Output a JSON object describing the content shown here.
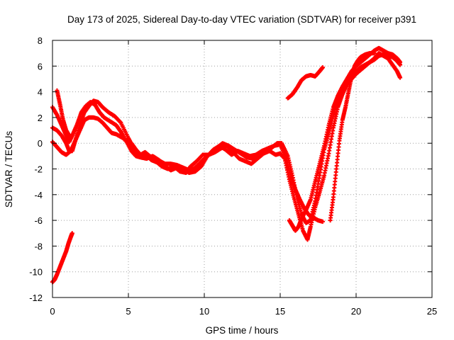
{
  "chart_data": {
    "type": "scatter",
    "title": "Day 173 of 2025, Sidereal Day-to-day VTEC variation (SDTVAR) for receiver p391",
    "xlabel": "GPS time / hours",
    "ylabel": "SDTVAR / TECUs",
    "xlim": [
      0,
      25
    ],
    "ylim": [
      -12,
      8
    ],
    "xticks": [
      0,
      5,
      10,
      15,
      20,
      25
    ],
    "yticks": [
      -12,
      -10,
      -8,
      -6,
      -4,
      -2,
      0,
      2,
      4,
      6,
      8
    ],
    "xtick_labels": [
      "0",
      "5",
      "10",
      "15",
      "20",
      "25"
    ],
    "ytick_labels": [
      "-12",
      "-10",
      "-8",
      "-6",
      "-4",
      "-2",
      "0",
      "2",
      "4",
      "6",
      "8"
    ],
    "grid": true,
    "marker": "plus",
    "colors": {
      "series": "#ff0000",
      "grid": "#a0a0a0",
      "axes": "#000000"
    },
    "series": [
      {
        "values": [
          [
            0.0,
            2.8
          ],
          [
            0.3,
            2.2
          ],
          [
            0.6,
            1.4
          ],
          [
            0.9,
            0.6
          ],
          [
            1.1,
            0.1
          ],
          [
            1.3,
            0.6
          ],
          [
            1.6,
            1.4
          ],
          [
            1.9,
            2.4
          ],
          [
            2.2,
            2.9
          ],
          [
            2.5,
            3.2
          ],
          [
            2.8,
            3.0
          ],
          [
            3.1,
            2.4
          ],
          [
            3.4,
            2.0
          ],
          [
            3.8,
            1.7
          ],
          [
            4.2,
            1.4
          ],
          [
            4.5,
            0.9
          ],
          [
            4.8,
            0.2
          ],
          [
            5.2,
            0.0
          ],
          [
            5.5,
            -0.5
          ],
          [
            5.8,
            -0.9
          ],
          [
            6.1,
            -0.7
          ],
          [
            6.4,
            -1.0
          ],
          [
            6.8,
            -1.2
          ],
          [
            7.1,
            -1.4
          ],
          [
            7.4,
            -1.6
          ],
          [
            7.8,
            -1.6
          ],
          [
            8.2,
            -1.7
          ],
          [
            8.6,
            -1.9
          ],
          [
            9.0,
            -2.1
          ],
          [
            9.3,
            -2.0
          ],
          [
            9.6,
            -1.7
          ],
          [
            10.0,
            -1.2
          ],
          [
            10.4,
            -0.8
          ],
          [
            10.8,
            -0.4
          ],
          [
            11.2,
            0.0
          ],
          [
            11.6,
            -0.2
          ],
          [
            12.0,
            -0.5
          ],
          [
            12.4,
            -0.8
          ],
          [
            12.8,
            -1.1
          ],
          [
            13.2,
            -1.2
          ],
          [
            13.6,
            -1.0
          ],
          [
            14.0,
            -0.7
          ],
          [
            14.4,
            -0.4
          ],
          [
            14.8,
            0.0
          ],
          [
            15.1,
            0.0
          ],
          [
            15.5,
            -1.0
          ],
          [
            15.8,
            -2.5
          ],
          [
            16.1,
            -4.2
          ],
          [
            16.4,
            -5.5
          ],
          [
            16.7,
            -6.2
          ],
          [
            17.0,
            -6.0
          ],
          [
            17.3,
            -4.5
          ],
          [
            17.6,
            -2.5
          ],
          [
            17.9,
            -0.5
          ],
          [
            18.2,
            0.8
          ],
          [
            18.5,
            2.2
          ],
          [
            18.8,
            3.3
          ],
          [
            19.1,
            4.1
          ],
          [
            19.4,
            4.6
          ],
          [
            19.7,
            5.0
          ],
          [
            20.0,
            5.4
          ],
          [
            20.3,
            5.7
          ],
          [
            20.6,
            6.0
          ],
          [
            20.9,
            6.3
          ],
          [
            21.2,
            6.6
          ],
          [
            21.5,
            7.0
          ],
          [
            21.8,
            6.8
          ],
          [
            22.1,
            6.6
          ],
          [
            22.4,
            6.1
          ],
          [
            22.7,
            5.6
          ],
          [
            22.9,
            5.1
          ]
        ]
      },
      {
        "values": [
          [
            0.0,
            1.2
          ],
          [
            0.3,
            1.0
          ],
          [
            0.6,
            0.6
          ],
          [
            0.9,
            0.0
          ],
          [
            1.1,
            -0.6
          ],
          [
            1.3,
            -0.6
          ],
          [
            1.5,
            0.2
          ],
          [
            1.8,
            1.4
          ],
          [
            2.1,
            2.4
          ],
          [
            2.4,
            2.9
          ],
          [
            2.7,
            3.3
          ],
          [
            3.0,
            3.2
          ],
          [
            3.3,
            2.8
          ],
          [
            3.7,
            2.4
          ],
          [
            4.1,
            2.1
          ],
          [
            4.5,
            1.6
          ],
          [
            5.0,
            0.4
          ],
          [
            5.3,
            -0.3
          ],
          [
            5.6,
            -0.8
          ],
          [
            5.9,
            -1.1
          ],
          [
            6.2,
            -0.9
          ],
          [
            6.5,
            -1.3
          ],
          [
            6.9,
            -1.5
          ],
          [
            7.2,
            -1.8
          ],
          [
            7.6,
            -2.0
          ],
          [
            8.0,
            -1.8
          ],
          [
            8.4,
            -2.2
          ],
          [
            8.8,
            -2.3
          ],
          [
            9.1,
            -1.8
          ],
          [
            9.5,
            -1.4
          ],
          [
            9.9,
            -0.9
          ],
          [
            10.3,
            -0.9
          ],
          [
            10.7,
            -0.7
          ],
          [
            11.1,
            -0.4
          ],
          [
            11.5,
            -0.2
          ],
          [
            11.9,
            -0.7
          ],
          [
            12.3,
            -1.2
          ],
          [
            12.7,
            -1.4
          ],
          [
            13.1,
            -1.6
          ],
          [
            13.5,
            -1.2
          ],
          [
            13.9,
            -0.8
          ],
          [
            14.3,
            -0.6
          ],
          [
            14.7,
            -0.9
          ],
          [
            15.0,
            -0.8
          ],
          [
            15.3,
            -1.2
          ],
          [
            15.6,
            -2.8
          ],
          [
            15.9,
            -4.2
          ],
          [
            16.2,
            -5.5
          ],
          [
            16.5,
            -6.8
          ],
          [
            16.8,
            -7.5
          ],
          [
            17.0,
            -6.5
          ],
          [
            17.3,
            -5.0
          ],
          [
            17.6,
            -3.8
          ],
          [
            17.9,
            -2.5
          ],
          [
            18.2,
            -0.8
          ],
          [
            18.5,
            1.2
          ],
          [
            18.8,
            2.8
          ],
          [
            19.1,
            3.8
          ],
          [
            19.4,
            4.6
          ],
          [
            19.7,
            5.2
          ],
          [
            20.0,
            5.6
          ],
          [
            20.3,
            5.9
          ],
          [
            20.6,
            6.1
          ],
          [
            20.9,
            6.3
          ],
          [
            21.2,
            6.5
          ],
          [
            21.5,
            6.8
          ],
          [
            21.8,
            6.9
          ],
          [
            22.1,
            6.8
          ],
          [
            22.4,
            6.7
          ],
          [
            22.7,
            6.4
          ],
          [
            22.9,
            6.1
          ]
        ]
      },
      {
        "values": [
          [
            0.0,
            0.1
          ],
          [
            0.3,
            -0.3
          ],
          [
            0.6,
            -0.7
          ],
          [
            0.9,
            -0.9
          ],
          [
            1.2,
            -0.6
          ],
          [
            1.5,
            0.2
          ],
          [
            1.8,
            1.0
          ],
          [
            2.1,
            1.8
          ],
          [
            2.4,
            2.0
          ],
          [
            2.7,
            2.0
          ],
          [
            3.0,
            1.9
          ],
          [
            3.3,
            1.6
          ],
          [
            3.6,
            1.2
          ],
          [
            3.9,
            0.8
          ],
          [
            4.2,
            0.7
          ],
          [
            4.5,
            0.5
          ],
          [
            4.8,
            0.3
          ],
          [
            5.2,
            -0.6
          ],
          [
            5.5,
            -1.0
          ],
          [
            5.8,
            -1.1
          ],
          [
            6.2,
            -1.2
          ],
          [
            6.6,
            -1.0
          ],
          [
            7.0,
            -1.3
          ],
          [
            7.4,
            -1.8
          ],
          [
            7.8,
            -2.1
          ],
          [
            8.2,
            -1.9
          ],
          [
            8.6,
            -2.0
          ],
          [
            9.0,
            -2.3
          ],
          [
            9.4,
            -2.2
          ],
          [
            9.8,
            -1.8
          ],
          [
            10.2,
            -1.0
          ],
          [
            10.6,
            -0.5
          ],
          [
            11.0,
            -0.2
          ],
          [
            11.4,
            -0.5
          ],
          [
            11.8,
            -0.9
          ],
          [
            12.2,
            -0.6
          ],
          [
            12.6,
            -0.8
          ],
          [
            13.0,
            -1.0
          ],
          [
            13.4,
            -0.9
          ],
          [
            13.8,
            -0.6
          ],
          [
            14.2,
            -0.4
          ],
          [
            14.6,
            -0.2
          ],
          [
            15.0,
            -0.1
          ],
          [
            15.4,
            -1.2
          ],
          [
            15.7,
            -2.6
          ],
          [
            16.0,
            -3.6
          ],
          [
            16.3,
            -4.4
          ],
          [
            16.6,
            -5.1
          ],
          [
            16.9,
            -5.6
          ],
          [
            17.2,
            -5.8
          ],
          [
            17.5,
            -6.0
          ],
          [
            17.8,
            -6.1
          ]
        ]
      },
      {
        "values": [
          [
            15.6,
            -6.0
          ],
          [
            15.8,
            -6.4
          ],
          [
            16.0,
            -6.8
          ],
          [
            16.2,
            -6.5
          ],
          [
            16.4,
            -5.9
          ],
          [
            16.7,
            -5.2
          ],
          [
            17.0,
            -4.4
          ],
          [
            17.3,
            -3.0
          ],
          [
            17.6,
            -1.6
          ],
          [
            17.9,
            -0.2
          ],
          [
            18.2,
            1.4
          ],
          [
            18.5,
            2.8
          ],
          [
            18.8,
            3.7
          ],
          [
            19.1,
            4.4
          ],
          [
            19.4,
            5.0
          ],
          [
            19.7,
            5.6
          ],
          [
            20.0,
            6.0
          ],
          [
            20.3,
            6.3
          ],
          [
            20.6,
            6.6
          ],
          [
            20.9,
            6.9
          ],
          [
            21.2,
            7.2
          ],
          [
            21.5,
            7.4
          ],
          [
            21.8,
            7.2
          ],
          [
            22.1,
            7.0
          ],
          [
            22.4,
            6.9
          ],
          [
            22.7,
            6.6
          ],
          [
            22.9,
            6.3
          ]
        ]
      },
      {
        "values": [
          [
            0.3,
            4.1
          ],
          [
            0.5,
            3.0
          ],
          [
            0.7,
            1.8
          ],
          [
            0.9,
            1.0
          ],
          [
            1.1,
            0.6
          ]
        ]
      },
      {
        "values": [
          [
            15.5,
            3.5
          ],
          [
            15.8,
            3.8
          ],
          [
            16.1,
            4.3
          ],
          [
            16.4,
            4.9
          ],
          [
            16.7,
            5.2
          ],
          [
            17.0,
            5.3
          ],
          [
            17.3,
            5.2
          ],
          [
            17.6,
            5.6
          ],
          [
            17.8,
            5.9
          ]
        ]
      },
      {
        "values": [
          [
            18.3,
            -6.0
          ],
          [
            18.5,
            -4.2
          ],
          [
            18.7,
            -2.0
          ],
          [
            18.9,
            0.2
          ],
          [
            19.1,
            1.8
          ],
          [
            19.3,
            2.8
          ],
          [
            19.5,
            4.0
          ],
          [
            19.7,
            5.2
          ],
          [
            19.9,
            6.0
          ],
          [
            20.1,
            6.4
          ],
          [
            20.3,
            6.7
          ],
          [
            20.6,
            6.9
          ],
          [
            20.9,
            7.0
          ],
          [
            21.2,
            7.0
          ]
        ]
      },
      {
        "values": [
          [
            0.0,
            -10.8
          ],
          [
            0.15,
            -10.6
          ],
          [
            0.3,
            -10.2
          ],
          [
            0.5,
            -9.6
          ],
          [
            0.7,
            -9.0
          ],
          [
            0.9,
            -8.4
          ],
          [
            1.05,
            -7.8
          ],
          [
            1.2,
            -7.3
          ],
          [
            1.3,
            -7.0
          ]
        ]
      }
    ]
  }
}
